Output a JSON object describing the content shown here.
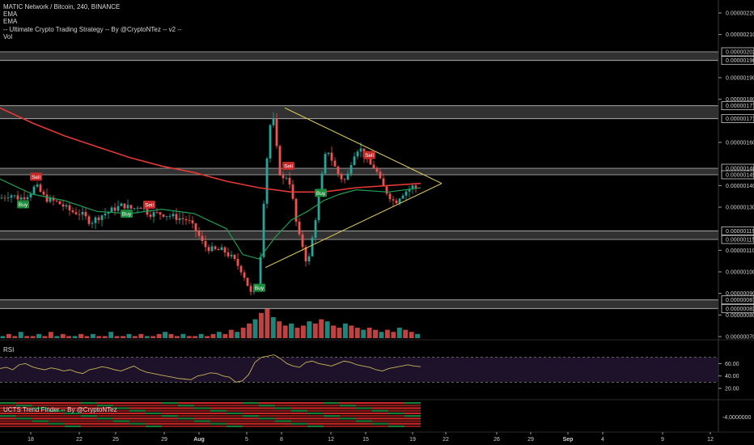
{
  "header": {
    "symbol_line": "MATIC Network / Bitcoin, 240, BINANCE",
    "indicators": [
      "EMA",
      "EMA",
      "-- Ultimate Crypto Trading Strategy -- By @CryptoNTez -- v2 --",
      "Vol"
    ]
  },
  "panes": {
    "rsi_label": "RSI",
    "trend_label": "UCTS Trend Finder -- By @CryptoNTez"
  },
  "colors": {
    "up": "#26a69a",
    "down": "#ef5350",
    "ema_slow": "#e53935",
    "ema_fast": "#1e9e50",
    "triangle": "#e6d55a",
    "sell_tag": "#c62828",
    "buy_tag": "#1b8a3a",
    "rsi_line": "#c9b458"
  },
  "chart_data": {
    "type": "candlestick",
    "price_axis": {
      "ticks": [
        "0.00000220",
        "0.00000210",
        "0.00000190",
        "0.00000180",
        "0.00000160",
        "0.00000140",
        "0.00000130",
        "0.00000110",
        "0.00000100",
        "0.00000090",
        "0.00000080",
        "0.00000070"
      ],
      "highlighted": [
        "0.00000202",
        "0.00000198",
        "0.00000177",
        "0.00000171",
        "0.00000148",
        "0.00000145",
        "0.00000119",
        "0.00000115",
        "0.00000087",
        "0.00000083"
      ]
    },
    "x_ticks": [
      "18",
      "22",
      "25",
      "29",
      "Aug",
      "5",
      "8",
      "12",
      "15",
      "19",
      "22",
      "26",
      "29",
      "Sep",
      "4",
      "9",
      "12"
    ],
    "zones": [
      [
        198,
        202
      ],
      [
        171,
        177
      ],
      [
        145,
        148
      ],
      [
        115,
        119
      ],
      [
        83,
        87
      ]
    ],
    "ema_slow": [
      [
        0,
        176
      ],
      [
        20,
        169
      ],
      [
        40,
        163
      ],
      [
        60,
        158
      ],
      [
        80,
        153
      ],
      [
        100,
        149
      ],
      [
        120,
        146
      ],
      [
        140,
        142
      ],
      [
        160,
        139
      ],
      [
        180,
        137
      ],
      [
        200,
        137
      ],
      [
        220,
        139
      ],
      [
        240,
        140
      ],
      [
        260,
        141
      ]
    ],
    "ema_fast": [
      [
        0,
        143
      ],
      [
        20,
        136
      ],
      [
        40,
        133
      ],
      [
        60,
        128
      ],
      [
        80,
        127
      ],
      [
        100,
        129
      ],
      [
        120,
        127
      ],
      [
        140,
        120
      ],
      [
        150,
        108
      ],
      [
        160,
        106
      ],
      [
        170,
        116
      ],
      [
        180,
        124
      ],
      [
        190,
        128
      ],
      [
        200,
        133
      ],
      [
        210,
        136
      ],
      [
        220,
        138
      ],
      [
        240,
        137
      ],
      [
        260,
        139
      ]
    ],
    "price_path": [
      [
        0,
        134
      ],
      [
        6,
        136
      ],
      [
        12,
        134
      ],
      [
        18,
        136
      ],
      [
        22,
        140
      ],
      [
        28,
        134
      ],
      [
        36,
        132
      ],
      [
        44,
        128
      ],
      [
        50,
        127
      ],
      [
        56,
        123
      ],
      [
        62,
        126
      ],
      [
        70,
        129
      ],
      [
        76,
        131
      ],
      [
        82,
        129
      ],
      [
        86,
        131
      ],
      [
        92,
        127
      ],
      [
        100,
        127
      ],
      [
        110,
        125
      ],
      [
        116,
        124
      ],
      [
        122,
        118
      ],
      [
        126,
        112
      ],
      [
        132,
        110
      ],
      [
        138,
        110
      ],
      [
        144,
        106
      ],
      [
        150,
        100
      ],
      [
        156,
        88
      ],
      [
        160,
        96
      ],
      [
        162,
        120
      ],
      [
        164,
        146
      ],
      [
        166,
        160
      ],
      [
        168,
        176
      ],
      [
        170,
        164
      ],
      [
        172,
        150
      ],
      [
        174,
        142
      ],
      [
        178,
        145
      ],
      [
        180,
        138
      ],
      [
        184,
        118
      ],
      [
        188,
        110
      ],
      [
        190,
        102
      ],
      [
        194,
        120
      ],
      [
        198,
        140
      ],
      [
        202,
        158
      ],
      [
        206,
        150
      ],
      [
        210,
        144
      ],
      [
        214,
        142
      ],
      [
        218,
        154
      ],
      [
        222,
        158
      ],
      [
        228,
        150
      ],
      [
        232,
        148
      ],
      [
        236,
        140
      ],
      [
        240,
        136
      ],
      [
        244,
        132
      ],
      [
        248,
        136
      ],
      [
        252,
        138
      ],
      [
        256,
        140
      ],
      [
        258,
        138
      ]
    ],
    "volume": [
      1,
      2,
      1,
      3,
      1,
      1,
      2,
      1,
      3,
      1,
      2,
      1,
      1,
      2,
      1,
      2,
      1,
      1,
      3,
      1,
      1,
      2,
      1,
      2,
      1,
      1,
      2,
      3,
      2,
      1,
      2,
      1,
      1,
      2,
      1,
      2,
      3,
      2,
      4,
      3,
      5,
      7,
      9,
      12,
      14,
      10,
      8,
      6,
      7,
      5,
      6,
      8,
      7,
      9,
      8,
      6,
      5,
      7,
      6,
      5,
      4,
      5,
      4,
      3,
      4,
      3,
      5,
      4,
      3,
      2
    ],
    "rsi": [
      52,
      54,
      50,
      58,
      60,
      55,
      52,
      50,
      53,
      51,
      48,
      50,
      46,
      44,
      50,
      52,
      55,
      53,
      50,
      48,
      52,
      56,
      50,
      46,
      44,
      42,
      40,
      38,
      36,
      35,
      34,
      40,
      42,
      45,
      44,
      40,
      38,
      30,
      32,
      42,
      62,
      70,
      72,
      74,
      68,
      60,
      56,
      54,
      62,
      64,
      60,
      58,
      56,
      60,
      64,
      62,
      58,
      56,
      54,
      50,
      48,
      52,
      54,
      56,
      58,
      56,
      55
    ],
    "rsi_axis": [
      "60.00",
      "40.00",
      "20.00"
    ],
    "trend_axis": "-4.0000000",
    "signals": [
      {
        "type": "Sell",
        "t": 22
      },
      {
        "type": "Buy",
        "t": 14
      },
      {
        "type": "Buy",
        "t": 78
      },
      {
        "type": "Sell",
        "t": 92
      },
      {
        "type": "Buy",
        "t": 160
      },
      {
        "type": "Sell",
        "t": 178
      },
      {
        "type": "Buy",
        "t": 198
      },
      {
        "type": "Sell",
        "t": 228
      }
    ]
  }
}
